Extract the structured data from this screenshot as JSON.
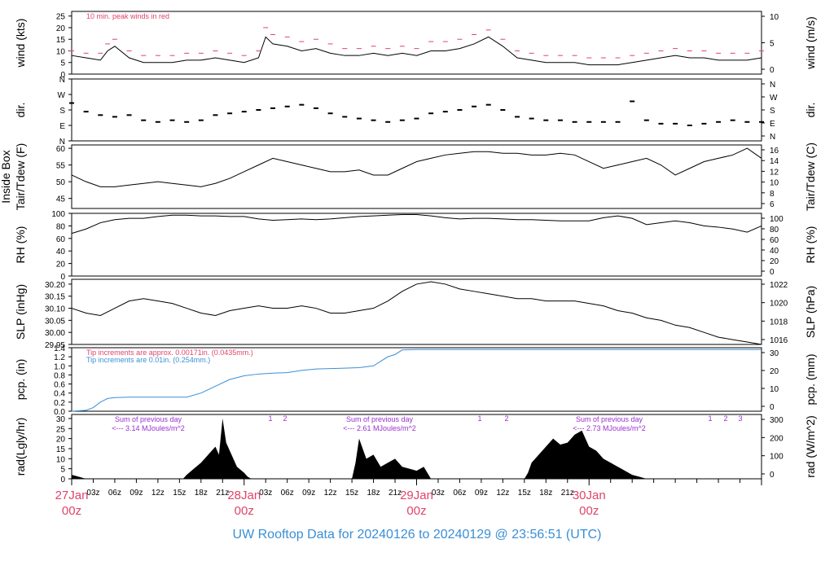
{
  "caption": "UW Rooftop Data for 20240126  to  20240129 @ 23:56:51  (UTC)",
  "colors": {
    "peak": "#e0446a",
    "pcp_blue": "#3a8fd6",
    "rad_annot": "#9b30d0",
    "date": "#e0446a",
    "caption": "#3a8fd6"
  },
  "chart_data": [
    {
      "id": "wind",
      "type": "line",
      "ylabel_left": "wind (kts)",
      "ylabel_right": "wind (m/s)",
      "yticks_left": [
        "0",
        "5",
        "10",
        "15",
        "20",
        "25"
      ],
      "yticks_right": [
        "0",
        "5",
        "10"
      ],
      "ylim": [
        0,
        27
      ],
      "annotations": [
        {
          "text": "10 min. peak winds in red",
          "color": "#e0446a"
        }
      ],
      "series": [
        {
          "key": "wind",
          "color": "#000000",
          "x": [
            0,
            2,
            4,
            5,
            6,
            8,
            10,
            12,
            14,
            16,
            18,
            20,
            22,
            24,
            26,
            27,
            28,
            30,
            32,
            34,
            36,
            38,
            40,
            42,
            44,
            46,
            48,
            50,
            52,
            54,
            56,
            58,
            60,
            62,
            64,
            66,
            68,
            70,
            72,
            74,
            76,
            78,
            80,
            82,
            84,
            86,
            88,
            90,
            92,
            94,
            96
          ],
          "values": [
            8,
            7,
            6,
            10,
            12,
            7,
            5,
            5,
            5,
            6,
            6,
            7,
            6,
            5,
            7,
            16,
            13,
            12,
            10,
            11,
            9,
            8,
            8,
            9,
            8,
            9,
            8,
            10,
            10,
            11,
            13,
            16,
            12,
            7,
            6,
            5,
            5,
            5,
            4,
            4,
            4,
            5,
            6,
            7,
            8,
            7,
            7,
            6,
            6,
            6,
            7
          ]
        },
        {
          "key": "peak",
          "color": "#e0446a",
          "x": [
            0,
            2,
            4,
            5,
            6,
            8,
            10,
            12,
            14,
            16,
            18,
            20,
            22,
            24,
            26,
            27,
            28,
            30,
            32,
            34,
            36,
            38,
            40,
            42,
            44,
            46,
            48,
            50,
            52,
            54,
            56,
            58,
            60,
            62,
            64,
            66,
            68,
            70,
            72,
            74,
            76,
            78,
            80,
            82,
            84,
            86,
            88,
            90,
            92,
            94,
            96
          ],
          "values": [
            10,
            9,
            9,
            13,
            15,
            10,
            8,
            8,
            8,
            9,
            9,
            10,
            9,
            8,
            10,
            20,
            17,
            16,
            14,
            15,
            13,
            11,
            11,
            12,
            11,
            12,
            11,
            14,
            14,
            15,
            17,
            19,
            15,
            10,
            9,
            8,
            8,
            8,
            7,
            7,
            7,
            8,
            9,
            10,
            11,
            10,
            10,
            9,
            9,
            9,
            10
          ]
        }
      ]
    },
    {
      "id": "dir",
      "type": "scatter",
      "ylabel_left": "dir.",
      "ylabel_right": "dir.",
      "yticks_left": [
        "N",
        "E",
        "S",
        "W",
        "N"
      ],
      "yticks_right": [
        "N",
        "E",
        "S",
        "W",
        "N"
      ],
      "ylim": [
        0,
        360
      ],
      "series": [
        {
          "key": "dir",
          "x": [
            0,
            2,
            4,
            6,
            8,
            10,
            12,
            14,
            16,
            18,
            20,
            22,
            24,
            26,
            28,
            30,
            32,
            34,
            36,
            38,
            40,
            42,
            44,
            46,
            48,
            50,
            52,
            54,
            56,
            58,
            60,
            62,
            64,
            66,
            68,
            70,
            72,
            74,
            76,
            78,
            80,
            82,
            84,
            86,
            88,
            90,
            92,
            94,
            96
          ],
          "values": [
            220,
            170,
            150,
            140,
            150,
            120,
            110,
            120,
            110,
            120,
            150,
            160,
            170,
            180,
            190,
            200,
            210,
            190,
            160,
            140,
            130,
            120,
            110,
            120,
            130,
            160,
            170,
            180,
            200,
            210,
            180,
            140,
            130,
            120,
            120,
            110,
            110,
            110,
            110,
            230,
            120,
            100,
            100,
            90,
            100,
            110,
            120,
            110,
            110
          ]
        }
      ]
    },
    {
      "id": "temp",
      "type": "line",
      "ylabel_left": "Tair/Tdew (F)",
      "ylabel_left2": "Inside Box",
      "ylabel_right": "Tair/Tdew (C)",
      "yticks_left": [
        "45",
        "50",
        "55",
        "60"
      ],
      "yticks_right": [
        "6",
        "8",
        "10",
        "12",
        "14",
        "16"
      ],
      "ylim": [
        42,
        61
      ],
      "series": [
        {
          "key": "temp",
          "x": [
            0,
            2,
            4,
            6,
            8,
            10,
            12,
            14,
            16,
            18,
            20,
            22,
            24,
            26,
            28,
            30,
            32,
            34,
            36,
            38,
            40,
            42,
            44,
            46,
            48,
            50,
            52,
            54,
            56,
            58,
            60,
            62,
            64,
            66,
            68,
            70,
            72,
            74,
            76,
            78,
            80,
            82,
            84,
            86,
            88,
            90,
            92,
            94,
            96
          ],
          "values": [
            52,
            50,
            48.5,
            48.5,
            49,
            49.5,
            50,
            49.5,
            49,
            48.5,
            49.5,
            51,
            53,
            55,
            57,
            56,
            55,
            54,
            53,
            53,
            53.5,
            52,
            52,
            54,
            56,
            57,
            58,
            58.5,
            59,
            59,
            58.5,
            58.5,
            58,
            58,
            58.5,
            58,
            56,
            54,
            55,
            56,
            57,
            55,
            52,
            54,
            56,
            57,
            58,
            60,
            57
          ]
        }
      ]
    },
    {
      "id": "rh",
      "type": "line",
      "ylabel_left": "RH (%)",
      "ylabel_right": "RH (%)",
      "yticks_left": [
        "0",
        "20",
        "40",
        "60",
        "80",
        "100"
      ],
      "yticks_right": [
        "0",
        "20",
        "40",
        "60",
        "80",
        "100"
      ],
      "ylim": [
        0,
        100
      ],
      "series": [
        {
          "key": "rh",
          "x": [
            0,
            2,
            4,
            6,
            8,
            10,
            12,
            14,
            16,
            18,
            20,
            22,
            24,
            26,
            28,
            30,
            32,
            34,
            36,
            38,
            40,
            42,
            44,
            46,
            48,
            50,
            52,
            54,
            56,
            58,
            60,
            62,
            64,
            66,
            68,
            70,
            72,
            74,
            76,
            78,
            80,
            82,
            84,
            86,
            88,
            90,
            92,
            94,
            96
          ],
          "values": [
            68,
            75,
            85,
            90,
            92,
            92,
            95,
            97,
            97,
            96,
            96,
            95,
            95,
            91,
            89,
            90,
            91,
            90,
            91,
            93,
            95,
            96,
            97,
            98,
            98,
            96,
            93,
            91,
            92,
            92,
            91,
            90,
            90,
            89,
            88,
            88,
            88,
            93,
            96,
            92,
            82,
            85,
            88,
            85,
            80,
            78,
            75,
            70,
            80
          ]
        }
      ]
    },
    {
      "id": "slp",
      "type": "line",
      "ylabel_left": "SLP (inHg)",
      "ylabel_right": "SLP (hPa)",
      "yticks_left": [
        "29.95",
        "30.00",
        "30.05",
        "30.10",
        "30.15",
        "30.20"
      ],
      "yticks_right": [
        "1016",
        "1018",
        "1020",
        "1022"
      ],
      "ylim": [
        29.95,
        30.22
      ],
      "series": [
        {
          "key": "slp",
          "x": [
            0,
            2,
            4,
            6,
            8,
            10,
            12,
            14,
            16,
            18,
            20,
            22,
            24,
            26,
            28,
            30,
            32,
            34,
            36,
            38,
            40,
            42,
            44,
            46,
            48,
            50,
            52,
            54,
            56,
            58,
            60,
            62,
            64,
            66,
            68,
            70,
            72,
            74,
            76,
            78,
            80,
            82,
            84,
            86,
            88,
            90,
            92,
            94,
            96
          ],
          "values": [
            30.1,
            30.08,
            30.07,
            30.1,
            30.13,
            30.14,
            30.13,
            30.12,
            30.1,
            30.08,
            30.07,
            30.09,
            30.1,
            30.11,
            30.1,
            30.1,
            30.11,
            30.1,
            30.08,
            30.08,
            30.09,
            30.1,
            30.13,
            30.17,
            30.2,
            30.21,
            30.2,
            30.18,
            30.17,
            30.16,
            30.15,
            30.14,
            30.14,
            30.13,
            30.13,
            30.13,
            30.12,
            30.11,
            30.09,
            30.08,
            30.06,
            30.05,
            30.03,
            30.02,
            30.0,
            29.98,
            29.97,
            29.96,
            29.95
          ]
        }
      ]
    },
    {
      "id": "pcp",
      "type": "line",
      "ylabel_left": "pcp. (in)",
      "ylabel_right": "pcp. (mm)",
      "yticks_left": [
        "0.0",
        "0.2",
        "0.4",
        "0.6",
        "0.8",
        "1.0",
        "1.2",
        "1.4"
      ],
      "yticks_right": [
        "0",
        "10",
        "20",
        "30"
      ],
      "ylim": [
        0,
        1.4
      ],
      "annotations": [
        {
          "text": "Tip increments are approx. 0.00171in. (0.0435mm.)",
          "color": "#e0446a"
        },
        {
          "text": "Tip increments are 0.01in. (0.254mm.)",
          "color": "#3a8fd6"
        }
      ],
      "series": [
        {
          "key": "pcp",
          "color": "#3a8fd6",
          "x": [
            0,
            2,
            3,
            4,
            5,
            6,
            8,
            10,
            12,
            14,
            16,
            18,
            20,
            22,
            24,
            26,
            28,
            30,
            32,
            34,
            36,
            38,
            40,
            42,
            43,
            44,
            45,
            46,
            48,
            50,
            52,
            56,
            60,
            64,
            68,
            72,
            76,
            80,
            84,
            88,
            92,
            96
          ],
          "values": [
            0,
            0.02,
            0.08,
            0.2,
            0.28,
            0.3,
            0.31,
            0.31,
            0.31,
            0.31,
            0.31,
            0.4,
            0.55,
            0.7,
            0.78,
            0.82,
            0.84,
            0.85,
            0.9,
            0.93,
            0.94,
            0.95,
            0.96,
            1.0,
            1.1,
            1.2,
            1.25,
            1.35,
            1.36,
            1.36,
            1.36,
            1.36,
            1.36,
            1.36,
            1.36,
            1.36,
            1.36,
            1.36,
            1.36,
            1.36,
            1.36,
            1.36
          ]
        }
      ]
    },
    {
      "id": "rad",
      "type": "area",
      "ylabel_left": "rad(Lgly/hr)",
      "ylabel_right": "rad (W/m^2)",
      "yticks_left": [
        "0",
        "5",
        "10",
        "15",
        "20",
        "25",
        "30"
      ],
      "yticks_right": [
        "0",
        "100",
        "200",
        "300"
      ],
      "ylim": [
        0,
        32
      ],
      "annotations": [
        {
          "text": "Sum of previous day",
          "color": "#9b30d0"
        },
        {
          "text": "<--- 3.14 MJoules/m^2",
          "color": "#9b30d0"
        },
        {
          "text": "Sum of previous day",
          "color": "#9b30d0"
        },
        {
          "text": "<--- 2.61 MJoules/m^2",
          "color": "#9b30d0"
        },
        {
          "text": "Sum of previous day",
          "color": "#9b30d0"
        },
        {
          "text": "<--- 2.73 MJoules/m^2",
          "color": "#9b30d0"
        },
        {
          "text": "1",
          "color": "#9b30d0"
        },
        {
          "text": "2",
          "color": "#9b30d0"
        },
        {
          "text": "1",
          "color": "#9b30d0"
        },
        {
          "text": "2",
          "color": "#9b30d0"
        },
        {
          "text": "1",
          "color": "#9b30d0"
        },
        {
          "text": "2",
          "color": "#9b30d0"
        },
        {
          "text": "3",
          "color": "#9b30d0"
        }
      ],
      "series": [
        {
          "key": "rad",
          "x": [
            0,
            0.5,
            1,
            1.5,
            2,
            15.5,
            16,
            17,
            18,
            19,
            20,
            20.5,
            21,
            21.5,
            22,
            22.5,
            23,
            24,
            24.5,
            25,
            39,
            39.5,
            40,
            41,
            42,
            43,
            44,
            45,
            46,
            47,
            48,
            49,
            49.5,
            50,
            63,
            63.5,
            64,
            65,
            66,
            67,
            68,
            69,
            70,
            71,
            72,
            73,
            74,
            75,
            76,
            77,
            78,
            79,
            80
          ],
          "values": [
            2,
            1.5,
            1,
            0.5,
            0,
            0,
            2,
            5,
            8,
            12,
            16,
            12,
            30,
            18,
            14,
            10,
            6,
            3,
            1,
            0,
            0,
            8,
            20,
            10,
            12,
            6,
            8,
            10,
            6,
            5,
            4,
            6,
            3,
            0,
            0,
            3,
            8,
            12,
            16,
            20,
            17,
            18,
            22,
            24,
            16,
            14,
            10,
            8,
            6,
            4,
            2,
            1,
            0
          ]
        }
      ]
    }
  ],
  "x_axis": {
    "ticks": [
      {
        "label": "03z"
      },
      {
        "label": "06z"
      },
      {
        "label": "09z"
      },
      {
        "label": "12z"
      },
      {
        "label": "15z"
      },
      {
        "label": "18z"
      },
      {
        "label": "21z"
      },
      {
        "label": "03z"
      },
      {
        "label": "06z"
      },
      {
        "label": "09z"
      },
      {
        "label": "12z"
      },
      {
        "label": "15z"
      },
      {
        "label": "18z"
      },
      {
        "label": "21z"
      },
      {
        "label": "03z"
      },
      {
        "label": "06z"
      },
      {
        "label": "09z"
      },
      {
        "label": "12z"
      },
      {
        "label": "15z"
      },
      {
        "label": "18z"
      },
      {
        "label": "21z"
      }
    ],
    "dates": [
      {
        "label": "27Jan",
        "sub": "00z"
      },
      {
        "label": "28Jan",
        "sub": "00z"
      },
      {
        "label": "29Jan",
        "sub": "00z"
      },
      {
        "label": "30Jan",
        "sub": "00z"
      }
    ]
  }
}
